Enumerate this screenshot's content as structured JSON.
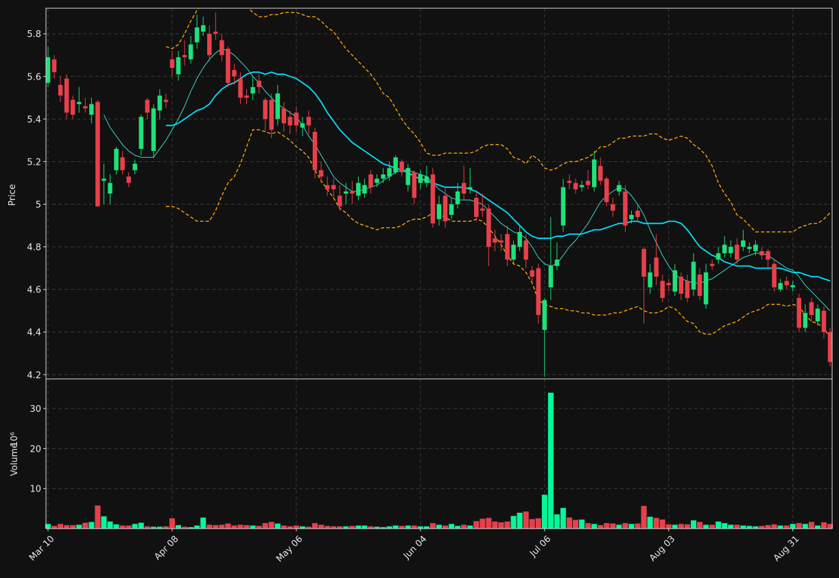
{
  "chart_data": {
    "type": "candlestick",
    "categories": [
      "Mar 10",
      null,
      null,
      null,
      null,
      null,
      null,
      null,
      null,
      null,
      null,
      null,
      null,
      null,
      null,
      null,
      null,
      null,
      null,
      null,
      "Apr 08",
      null,
      null,
      null,
      null,
      null,
      null,
      null,
      null,
      null,
      null,
      null,
      null,
      null,
      null,
      null,
      null,
      null,
      null,
      null,
      "May 06",
      null,
      null,
      null,
      null,
      null,
      null,
      null,
      null,
      null,
      null,
      null,
      null,
      null,
      null,
      null,
      null,
      null,
      null,
      null,
      "Jun 04",
      null,
      null,
      null,
      null,
      null,
      null,
      null,
      null,
      null,
      null,
      null,
      null,
      null,
      null,
      null,
      null,
      null,
      null,
      null,
      "Jul 06",
      null,
      null,
      null,
      null,
      null,
      null,
      null,
      null,
      null,
      null,
      null,
      null,
      null,
      null,
      null,
      null,
      null,
      null,
      null,
      "Aug 03",
      null,
      null,
      null,
      null,
      null,
      null,
      null,
      null,
      null,
      null,
      null,
      null,
      null,
      null,
      null,
      null,
      null,
      null,
      null,
      "Aug 31",
      null,
      null,
      null,
      null,
      null,
      null
    ],
    "open": [
      5.57,
      5.68,
      5.56,
      5.59,
      5.49,
      5.47,
      5.46,
      5.42,
      5.48,
      5.11,
      5.05,
      5.16,
      5.22,
      5.13,
      5.16,
      5.26,
      5.49,
      5.25,
      5.44,
      5.49,
      5.68,
      5.61,
      5.7,
      5.68,
      5.76,
      5.81,
      5.8,
      5.81,
      5.77,
      5.73,
      5.63,
      5.59,
      5.51,
      5.52,
      5.58,
      5.49,
      5.49,
      5.4,
      5.45,
      5.41,
      5.43,
      5.36,
      5.41,
      5.34,
      5.16,
      5.09,
      5.09,
      5.04,
      5.05,
      5.06,
      5.04,
      5.05,
      5.14,
      5.1,
      5.12,
      5.13,
      5.15,
      5.2,
      5.09,
      5.15,
      5.1,
      5.1,
      5.14,
      4.93,
      5.04,
      4.95,
      5.0,
      5.1,
      5.07,
      5.03,
      4.98,
      4.98,
      4.84,
      4.83,
      4.86,
      4.74,
      4.8,
      4.83,
      4.69,
      4.7,
      4.41,
      4.61,
      4.71,
      4.9,
      5.11,
      5.1,
      5.08,
      5.11,
      5.08,
      5.18,
      5.12,
      5.0,
      5.06,
      5.06,
      4.93,
      4.97,
      4.79,
      4.61,
      4.75,
      4.64,
      4.63,
      4.59,
      4.66,
      4.64,
      4.6,
      4.67,
      4.53,
      4.72,
      4.74,
      4.77,
      4.77,
      4.81,
      4.8,
      4.79,
      4.78,
      4.78,
      4.78,
      4.72,
      4.6,
      4.64,
      4.61,
      4.56,
      4.42,
      4.54,
      4.45,
      4.5,
      4.4
    ],
    "high": [
      5.74,
      5.7,
      5.6,
      5.61,
      5.51,
      5.55,
      5.5,
      5.5,
      5.49,
      5.19,
      5.14,
      5.27,
      5.25,
      5.15,
      5.21,
      5.42,
      5.5,
      5.47,
      5.54,
      5.52,
      5.72,
      5.72,
      5.77,
      5.79,
      5.89,
      5.88,
      5.84,
      5.9,
      5.8,
      5.74,
      5.66,
      5.62,
      5.54,
      5.6,
      5.61,
      5.5,
      5.52,
      5.56,
      5.48,
      5.44,
      5.46,
      5.41,
      5.44,
      5.36,
      5.2,
      5.13,
      5.12,
      5.09,
      5.1,
      5.11,
      5.13,
      5.12,
      5.16,
      5.14,
      5.17,
      5.2,
      5.23,
      5.21,
      5.19,
      5.16,
      5.16,
      5.18,
      5.17,
      5.04,
      5.08,
      5.03,
      5.1,
      5.18,
      5.17,
      5.06,
      5.05,
      5.0,
      4.88,
      4.86,
      4.9,
      4.83,
      4.9,
      4.86,
      4.71,
      4.72,
      4.56,
      4.94,
      4.82,
      5.12,
      5.14,
      5.12,
      5.11,
      5.16,
      5.25,
      5.22,
      5.13,
      5.03,
      5.11,
      5.09,
      4.97,
      5.0,
      4.8,
      4.72,
      4.86,
      4.67,
      4.65,
      4.72,
      4.68,
      4.67,
      4.77,
      4.7,
      4.72,
      4.74,
      4.8,
      4.85,
      4.83,
      4.84,
      4.88,
      4.82,
      4.83,
      4.8,
      4.79,
      4.74,
      4.65,
      4.66,
      4.64,
      4.58,
      4.53,
      4.56,
      4.53,
      4.52,
      4.42
    ],
    "low": [
      5.55,
      5.59,
      5.48,
      5.4,
      5.4,
      5.43,
      5.43,
      5.38,
      4.99,
      5.0,
      5.0,
      5.14,
      5.14,
      5.08,
      5.14,
      5.23,
      5.4,
      5.22,
      5.4,
      5.45,
      5.6,
      5.58,
      5.65,
      5.66,
      5.73,
      5.79,
      5.67,
      5.77,
      5.67,
      5.55,
      5.56,
      5.47,
      5.47,
      5.49,
      5.52,
      5.34,
      5.31,
      5.37,
      5.34,
      5.33,
      5.34,
      5.32,
      5.33,
      5.12,
      5.1,
      5.04,
      5.03,
      4.97,
      5.0,
      5.0,
      5.02,
      5.03,
      5.05,
      5.08,
      5.1,
      5.11,
      5.14,
      5.13,
      5.06,
      5.0,
      5.07,
      5.08,
      4.89,
      4.9,
      4.89,
      4.93,
      4.98,
      5.02,
      5.05,
      4.92,
      4.94,
      4.71,
      4.78,
      4.78,
      4.71,
      4.72,
      4.78,
      4.7,
      4.63,
      4.44,
      4.19,
      4.55,
      4.69,
      4.87,
      5.07,
      5.05,
      5.06,
      5.07,
      5.06,
      5.09,
      4.99,
      4.94,
      5.04,
      4.87,
      4.91,
      4.92,
      4.44,
      4.58,
      4.62,
      4.54,
      4.59,
      4.57,
      4.55,
      4.54,
      4.57,
      4.55,
      4.51,
      4.69,
      4.72,
      4.75,
      4.75,
      4.72,
      4.78,
      4.77,
      4.76,
      4.74,
      4.7,
      4.59,
      4.59,
      4.6,
      4.59,
      4.4,
      4.4,
      4.45,
      4.43,
      4.37,
      4.24
    ],
    "close": [
      5.69,
      5.62,
      5.51,
      5.43,
      5.42,
      5.48,
      5.45,
      5.47,
      4.99,
      5.12,
      5.1,
      5.26,
      5.16,
      5.1,
      5.19,
      5.41,
      5.43,
      5.45,
      5.51,
      5.48,
      5.64,
      5.69,
      5.69,
      5.75,
      5.83,
      5.84,
      5.7,
      5.8,
      5.7,
      5.57,
      5.6,
      5.5,
      5.5,
      5.55,
      5.55,
      5.4,
      5.35,
      5.52,
      5.38,
      5.37,
      5.37,
      5.38,
      5.37,
      5.16,
      5.13,
      5.07,
      5.07,
      4.99,
      5.06,
      5.05,
      5.1,
      5.09,
      5.08,
      5.12,
      5.14,
      5.17,
      5.22,
      5.15,
      5.17,
      5.03,
      5.14,
      5.13,
      4.91,
      5.0,
      4.92,
      5.0,
      5.06,
      5.05,
      5.08,
      4.94,
      4.97,
      4.8,
      4.82,
      4.82,
      4.74,
      4.81,
      4.87,
      4.74,
      4.66,
      4.48,
      4.55,
      4.71,
      4.74,
      5.08,
      5.1,
      5.07,
      5.09,
      5.09,
      5.21,
      5.11,
      5.01,
      4.97,
      5.09,
      4.9,
      4.95,
      4.94,
      4.66,
      4.68,
      4.66,
      4.56,
      4.62,
      4.69,
      4.58,
      4.56,
      4.73,
      4.57,
      4.68,
      4.71,
      4.77,
      4.81,
      4.8,
      4.74,
      4.83,
      4.8,
      4.81,
      4.76,
      4.74,
      4.61,
      4.63,
      4.62,
      4.62,
      4.42,
      4.49,
      4.48,
      4.51,
      4.4,
      4.26
    ],
    "up_color": "#1de27a",
    "down_color": "#e8404a",
    "ylabel": "Price",
    "ylim": [
      4.18,
      5.92
    ],
    "yticks": [
      4.2,
      4.4,
      4.6,
      4.8,
      5.0,
      5.2,
      5.4,
      5.6,
      5.8
    ],
    "grid": true,
    "lines": [
      {
        "color": "#3fd9d0",
        "style": "thin",
        "values": [
          null,
          null,
          null,
          null,
          null,
          null,
          null,
          null,
          null,
          5.42,
          5.36,
          5.32,
          5.28,
          5.25,
          5.23,
          5.22,
          5.22,
          5.22,
          5.26,
          5.3,
          5.35,
          5.4,
          5.46,
          5.53,
          5.59,
          5.64,
          5.68,
          5.71,
          5.73,
          5.72,
          5.7,
          5.67,
          5.64,
          5.6,
          5.57,
          5.53,
          5.5,
          5.47,
          5.45,
          5.43,
          5.41,
          5.37,
          5.32,
          5.28,
          5.23,
          5.18,
          5.13,
          5.1,
          5.08,
          5.06,
          5.06,
          5.07,
          5.08,
          5.09,
          5.11,
          5.13,
          5.15,
          5.16,
          5.16,
          5.15,
          5.14,
          5.13,
          5.1,
          5.07,
          5.05,
          5.03,
          5.02,
          5.02,
          5.02,
          5.01,
          5.0,
          4.97,
          4.94,
          4.91,
          4.89,
          4.87,
          4.86,
          4.84,
          4.8,
          4.75,
          4.72,
          4.71,
          4.72,
          4.76,
          4.8,
          4.83,
          4.87,
          4.91,
          4.96,
          5.01,
          5.04,
          5.06,
          5.08,
          5.07,
          5.04,
          5.0,
          4.95,
          4.88,
          4.82,
          4.76,
          4.71,
          4.67,
          4.65,
          4.64,
          4.63,
          4.63,
          4.64,
          4.65,
          4.67,
          4.69,
          4.71,
          4.73,
          4.75,
          4.76,
          4.77,
          4.77,
          4.76,
          4.74,
          4.72,
          4.7,
          4.69,
          4.66,
          4.62,
          4.59,
          4.56,
          4.53,
          4.5
        ]
      },
      {
        "color": "#00e5ff",
        "style": "thick",
        "values": [
          null,
          null,
          null,
          null,
          null,
          null,
          null,
          null,
          null,
          null,
          null,
          null,
          null,
          null,
          null,
          null,
          null,
          null,
          null,
          5.37,
          5.37,
          5.38,
          5.4,
          5.42,
          5.44,
          5.45,
          5.47,
          5.51,
          5.54,
          5.56,
          5.57,
          5.59,
          5.61,
          5.62,
          5.62,
          5.61,
          5.62,
          5.61,
          5.61,
          5.6,
          5.59,
          5.57,
          5.55,
          5.52,
          5.48,
          5.43,
          5.39,
          5.35,
          5.32,
          5.29,
          5.27,
          5.25,
          5.23,
          5.21,
          5.19,
          5.18,
          5.17,
          5.16,
          5.15,
          5.13,
          5.12,
          5.11,
          5.1,
          5.09,
          5.08,
          5.08,
          5.08,
          5.08,
          5.07,
          5.06,
          5.04,
          5.02,
          5.0,
          4.98,
          4.96,
          4.93,
          4.9,
          4.87,
          4.85,
          4.84,
          4.84,
          4.84,
          4.85,
          4.85,
          4.86,
          4.86,
          4.86,
          4.87,
          4.88,
          4.88,
          4.89,
          4.9,
          4.91,
          4.91,
          4.92,
          4.92,
          4.91,
          4.91,
          4.91,
          4.91,
          4.92,
          4.92,
          4.91,
          4.88,
          4.84,
          4.8,
          4.78,
          4.76,
          4.75,
          4.73,
          4.72,
          4.71,
          4.71,
          4.71,
          4.7,
          4.7,
          4.7,
          4.7,
          4.7,
          4.69,
          4.68,
          4.68,
          4.67,
          4.66,
          4.66,
          4.65,
          4.64
        ]
      },
      {
        "color": "#ffa500",
        "style": "dashed",
        "values": [
          null,
          null,
          null,
          null,
          null,
          null,
          null,
          null,
          null,
          null,
          null,
          null,
          null,
          null,
          null,
          null,
          null,
          null,
          null,
          5.74,
          5.73,
          5.75,
          5.8,
          5.86,
          5.91,
          5.95,
          5.98,
          6.0,
          6.0,
          5.99,
          5.98,
          5.96,
          5.93,
          5.9,
          5.88,
          5.88,
          5.89,
          5.89,
          5.9,
          5.9,
          5.9,
          5.89,
          5.88,
          5.88,
          5.86,
          5.83,
          5.81,
          5.77,
          5.73,
          5.7,
          5.67,
          5.64,
          5.61,
          5.57,
          5.52,
          5.5,
          5.45,
          5.4,
          5.36,
          5.33,
          5.29,
          5.24,
          5.23,
          5.23,
          5.24,
          5.24,
          5.24,
          5.24,
          5.24,
          5.25,
          5.27,
          5.28,
          5.28,
          5.28,
          5.26,
          5.22,
          5.21,
          5.19,
          5.23,
          5.21,
          5.17,
          5.16,
          5.17,
          5.19,
          5.2,
          5.2,
          5.21,
          5.22,
          5.24,
          5.27,
          5.27,
          5.29,
          5.31,
          5.31,
          5.32,
          5.32,
          5.32,
          5.33,
          5.33,
          5.31,
          5.3,
          5.31,
          5.32,
          5.31,
          5.28,
          5.26,
          5.23,
          5.18,
          5.1,
          5.05,
          5.01,
          4.95,
          4.93,
          4.9,
          4.87,
          4.87,
          4.87,
          4.87,
          4.87,
          4.87,
          4.87,
          4.89,
          4.9,
          4.91,
          4.91,
          4.93,
          4.96
        ]
      },
      {
        "color": "#ffa500",
        "style": "dashed",
        "values": [
          null,
          null,
          null,
          null,
          null,
          null,
          null,
          null,
          null,
          null,
          null,
          null,
          null,
          null,
          null,
          null,
          null,
          null,
          null,
          4.99,
          4.99,
          4.98,
          4.96,
          4.94,
          4.92,
          4.92,
          4.92,
          4.97,
          5.04,
          5.1,
          5.13,
          5.19,
          5.27,
          5.35,
          5.35,
          5.34,
          5.33,
          5.34,
          5.32,
          5.3,
          5.27,
          5.25,
          5.22,
          5.16,
          5.11,
          5.07,
          5.03,
          4.98,
          4.96,
          4.93,
          4.91,
          4.9,
          4.89,
          4.88,
          4.89,
          4.89,
          4.89,
          4.9,
          4.92,
          4.93,
          4.93,
          4.94,
          4.96,
          4.95,
          4.94,
          4.92,
          4.92,
          4.92,
          4.92,
          4.93,
          4.92,
          4.89,
          4.85,
          4.81,
          4.76,
          4.72,
          4.71,
          4.68,
          4.63,
          4.55,
          4.53,
          4.52,
          4.51,
          4.51,
          4.5,
          4.5,
          4.49,
          4.49,
          4.48,
          4.48,
          4.48,
          4.49,
          4.49,
          4.5,
          4.51,
          4.52,
          4.5,
          4.49,
          4.49,
          4.5,
          4.52,
          4.51,
          4.48,
          4.45,
          4.44,
          4.4,
          4.39,
          4.39,
          4.41,
          4.43,
          4.44,
          4.45,
          4.47,
          4.49,
          4.5,
          4.51,
          4.53,
          4.53,
          4.53,
          4.52,
          4.53,
          4.52,
          4.48,
          4.45,
          4.44,
          4.42,
          4.37
        ]
      }
    ],
    "volume": {
      "ylabel": "Volume",
      "scale_label": "10⁶",
      "ylim": [
        0,
        37.4
      ],
      "yticks": [
        10,
        20,
        30
      ],
      "up_color": "#00fa9a",
      "down_color": "#e8404a",
      "values": [
        1.2,
        0.7,
        1.2,
        0.9,
        0.9,
        1.0,
        1.5,
        1.7,
        5.8,
        3.1,
        1.8,
        1.1,
        0.8,
        0.8,
        1.2,
        1.5,
        0.6,
        0.5,
        0.5,
        0.6,
        2.6,
        0.9,
        0.5,
        0.4,
        0.8,
        2.8,
        1.0,
        0.9,
        1.0,
        1.3,
        0.8,
        1.0,
        0.9,
        0.8,
        0.7,
        1.4,
        1.7,
        1.3,
        0.8,
        0.6,
        0.8,
        0.6,
        0.5,
        1.4,
        1.0,
        0.7,
        0.6,
        0.6,
        0.6,
        0.7,
        0.8,
        0.8,
        0.6,
        0.5,
        0.4,
        0.6,
        0.8,
        0.7,
        0.8,
        0.8,
        0.6,
        0.6,
        1.4,
        1.0,
        0.8,
        1.2,
        0.7,
        1.0,
        0.8,
        1.9,
        2.5,
        2.7,
        1.8,
        1.6,
        1.8,
        3.2,
        4.0,
        4.3,
        2.4,
        2.6,
        8.5,
        34.0,
        3.6,
        5.2,
        2.8,
        2.2,
        2.3,
        1.4,
        1.2,
        0.9,
        1.4,
        1.3,
        1.0,
        1.4,
        1.2,
        1.3,
        5.7,
        3.0,
        2.7,
        2.3,
        1.1,
        1.0,
        1.2,
        1.1,
        2.1,
        1.7,
        1.0,
        1.0,
        1.8,
        1.4,
        1.0,
        1.0,
        0.8,
        0.7,
        0.6,
        0.7,
        0.9,
        1.1,
        0.8,
        0.8,
        1.2,
        1.4,
        1.2,
        1.7,
        0.8,
        1.6,
        1.2
      ]
    }
  }
}
